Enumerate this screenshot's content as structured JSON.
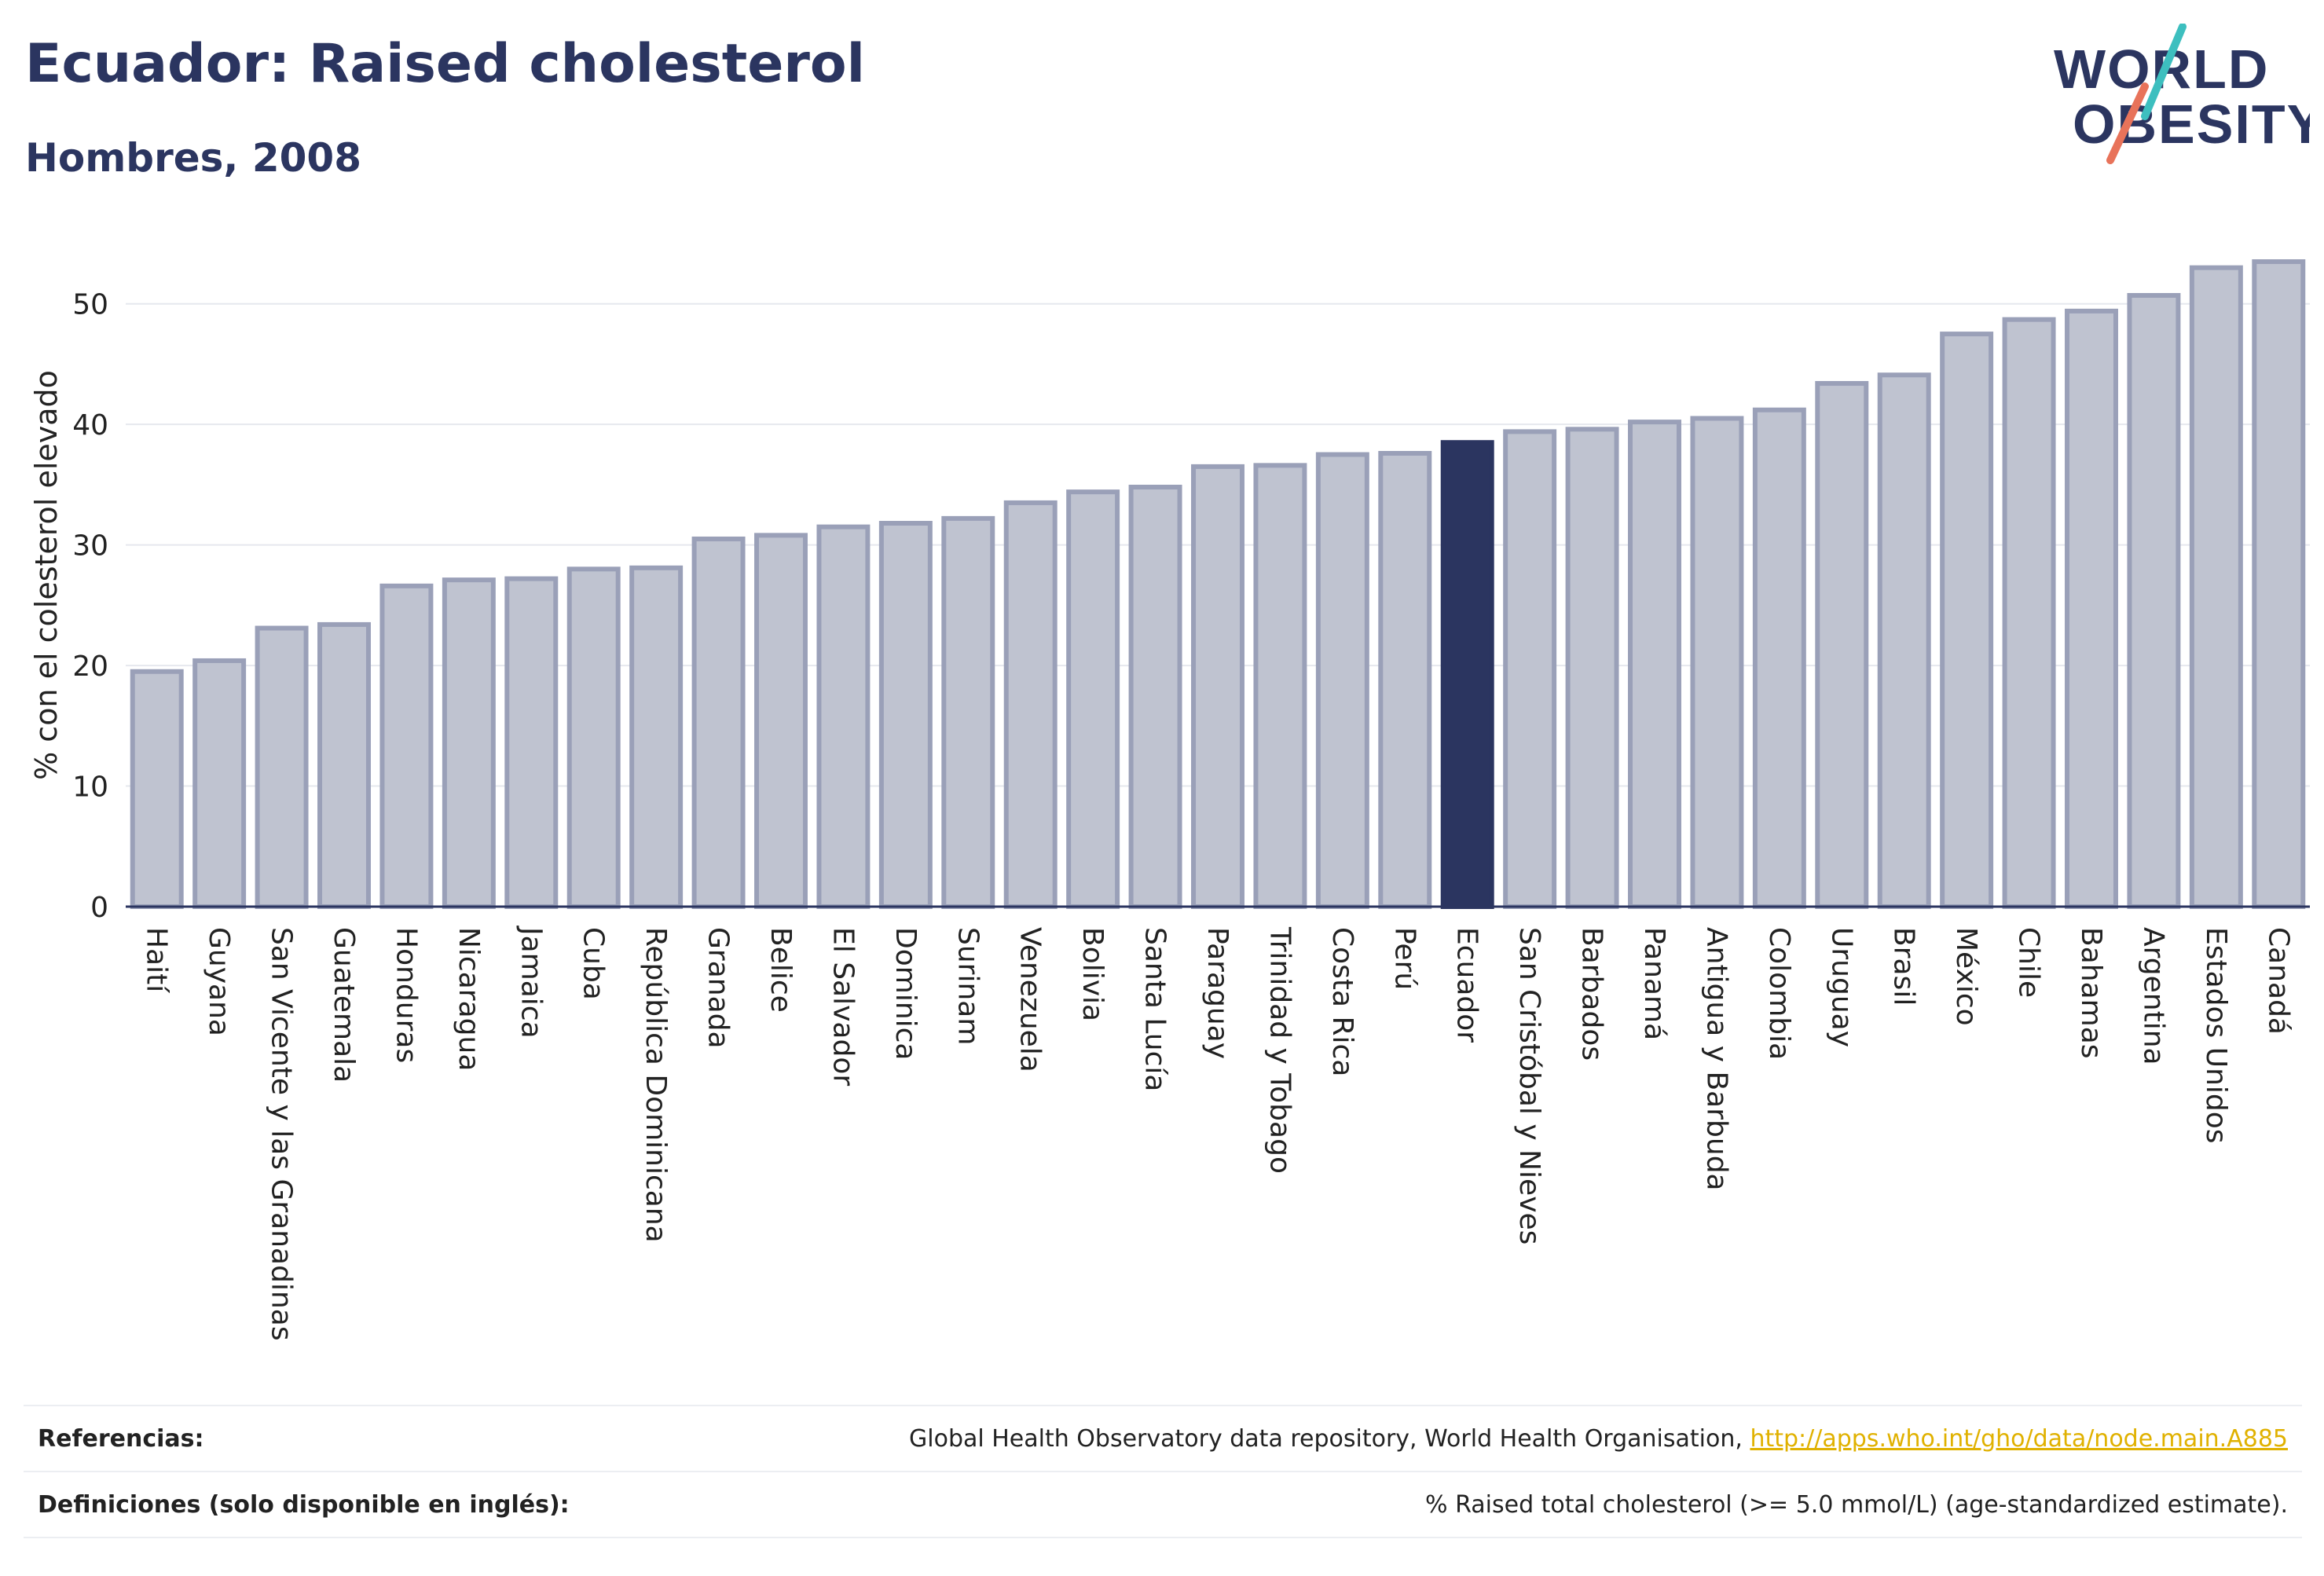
{
  "header": {
    "title": "Ecuador: Raised cholesterol",
    "subtitle": "Hombres, 2008"
  },
  "logo": {
    "line1": "WORLD",
    "line2": "OBESITY"
  },
  "colors": {
    "highlight_bar": "#2b3560",
    "default_bar": "#bfc3d0",
    "default_bar_edge": "#9aa0b8",
    "accent_teal": "#3dbfbf",
    "accent_coral": "#e8735a"
  },
  "chart_data": {
    "type": "bar",
    "ylabel": "% con el colesterol elevado",
    "ylim": [
      0,
      55
    ],
    "yticks": [
      0,
      10,
      20,
      30,
      40,
      50
    ],
    "grid": true,
    "highlight": "Ecuador",
    "categories": [
      "Haití",
      "Guyana",
      "San Vicente y las Granadinas",
      "Guatemala",
      "Honduras",
      "Nicaragua",
      "Jamaica",
      "Cuba",
      "República Dominicana",
      "Granada",
      "Belice",
      "El Salvador",
      "Dominica",
      "Surinam",
      "Venezuela",
      "Bolivia",
      "Santa Lucía",
      "Paraguay",
      "Trinidad y Tobago",
      "Costa Rica",
      "Perú",
      "Ecuador",
      "San Cristóbal y Nieves",
      "Barbados",
      "Panamá",
      "Antigua y Barbuda",
      "Colombia",
      "Uruguay",
      "Brasil",
      "México",
      "Chile",
      "Bahamas",
      "Argentina",
      "Estados Unidos",
      "Canadá"
    ],
    "values": [
      19.5,
      20.4,
      23.1,
      23.4,
      26.6,
      27.1,
      27.2,
      28.0,
      28.1,
      30.5,
      30.8,
      31.5,
      31.8,
      32.2,
      33.5,
      34.4,
      34.8,
      36.5,
      36.6,
      37.5,
      37.6,
      38.5,
      39.4,
      39.6,
      40.2,
      40.5,
      41.2,
      43.4,
      44.1,
      47.5,
      48.7,
      49.4,
      50.7,
      53.0,
      53.5
    ]
  },
  "footer": {
    "references_label": "Referencias:",
    "references_text": "Global Health Observatory data repository, World Health Organisation, ",
    "references_link": "http://apps.who.int/gho/data/node.main.A885",
    "definitions_label": "Definiciones (solo disponible en inglés):",
    "definitions_text": "% Raised total cholesterol (>= 5.0 mmol/L) (age-standardized estimate)."
  }
}
